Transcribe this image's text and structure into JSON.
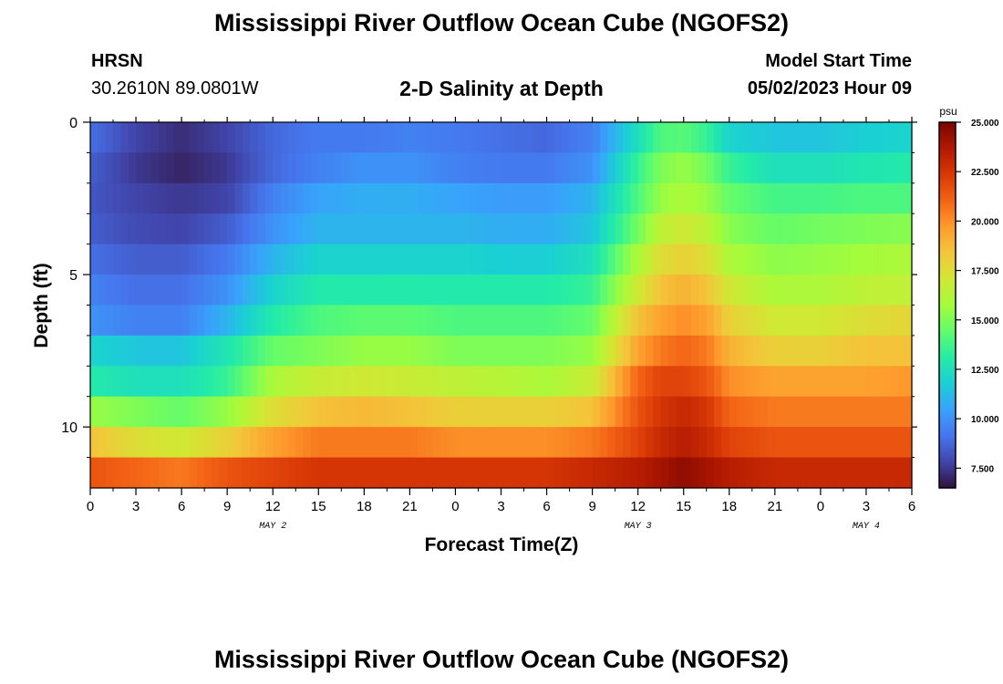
{
  "header": {
    "title": "Mississippi River Outflow Ocean Cube (NGOFS2)",
    "station": "HRSN",
    "coords": "30.2610N  89.0801W",
    "subtitle": "2-D Salinity at Depth",
    "model_start_label": "Model Start Time",
    "model_start_value": "05/02/2023 Hour 09"
  },
  "footer": {
    "title": "Mississippi River Outflow Ocean Cube (NGOFS2)"
  },
  "chart_data": {
    "type": "heatmap",
    "title": "2-D Salinity at Depth",
    "xlabel": "Forecast Time(Z)",
    "ylabel": "Depth (ft)",
    "x_tick_labels": [
      "0",
      "3",
      "6",
      "9",
      "12",
      "15",
      "18",
      "21",
      "0",
      "3",
      "6",
      "9",
      "12",
      "15",
      "18",
      "21",
      "0",
      "3",
      "6"
    ],
    "x_range_hours": [
      0,
      54
    ],
    "date_labels": [
      {
        "label": "MAY 2",
        "at_hour": 12
      },
      {
        "label": "MAY 3",
        "at_hour": 36
      },
      {
        "label": "MAY 4",
        "at_hour": 51
      }
    ],
    "y_tick_labels": [
      "0",
      "5",
      "10"
    ],
    "y_range_ft": [
      0,
      12
    ],
    "y_reversed": true,
    "depth_layers_ft": [
      0.5,
      1.5,
      2.5,
      3.5,
      4.5,
      5.5,
      6.5,
      7.5,
      8.5,
      9.5,
      10.5,
      11.5
    ],
    "time_hours": [
      0,
      3,
      6,
      9,
      12,
      15,
      18,
      21,
      24,
      27,
      30,
      33,
      36,
      37.5,
      39,
      40.5,
      42,
      45,
      48,
      51,
      54
    ],
    "salinity_psu": [
      [
        9.0,
        7.8,
        7.2,
        7.8,
        8.8,
        9.3,
        9.3,
        9.5,
        9.3,
        9.0,
        8.8,
        9.5,
        12.5,
        14.0,
        14.2,
        13.5,
        12.0,
        11.5,
        11.5,
        11.8,
        12.0
      ],
      [
        8.5,
        7.5,
        7.0,
        7.5,
        8.8,
        9.5,
        10.0,
        10.0,
        9.5,
        9.3,
        9.3,
        10.0,
        13.5,
        15.0,
        15.5,
        14.8,
        13.5,
        12.5,
        12.5,
        12.8,
        13.0
      ],
      [
        8.3,
        7.8,
        7.5,
        7.8,
        9.5,
        10.5,
        10.8,
        10.8,
        10.5,
        10.3,
        10.3,
        11.0,
        14.0,
        15.5,
        16.0,
        15.5,
        14.5,
        13.8,
        13.8,
        14.0,
        14.0
      ],
      [
        8.5,
        8.0,
        7.8,
        8.5,
        10.0,
        11.0,
        11.0,
        11.0,
        11.0,
        10.8,
        10.8,
        11.5,
        14.8,
        16.5,
        17.0,
        16.5,
        15.2,
        14.5,
        14.8,
        15.0,
        15.2
      ],
      [
        9.0,
        8.5,
        8.5,
        9.3,
        11.0,
        12.0,
        12.0,
        12.0,
        12.0,
        11.8,
        11.8,
        12.5,
        16.0,
        17.5,
        18.0,
        17.5,
        16.0,
        15.3,
        15.5,
        15.8,
        16.0
      ],
      [
        9.5,
        9.0,
        9.0,
        10.0,
        12.0,
        13.0,
        13.0,
        13.0,
        13.0,
        13.0,
        13.0,
        13.5,
        17.0,
        18.5,
        19.0,
        18.5,
        17.0,
        16.0,
        16.0,
        16.5,
        16.5
      ],
      [
        10.0,
        9.5,
        9.5,
        11.0,
        13.0,
        14.0,
        14.3,
        14.3,
        14.0,
        14.0,
        14.0,
        14.5,
        18.5,
        19.5,
        20.0,
        19.5,
        18.0,
        17.0,
        17.0,
        17.5,
        17.8
      ],
      [
        12.0,
        11.5,
        11.5,
        12.8,
        14.5,
        15.0,
        15.5,
        15.5,
        15.0,
        15.0,
        15.0,
        15.5,
        19.5,
        20.5,
        21.0,
        20.5,
        19.0,
        18.0,
        18.0,
        18.5,
        18.5
      ],
      [
        13.0,
        12.5,
        12.5,
        13.5,
        16.0,
        16.8,
        17.0,
        16.8,
        16.5,
        16.3,
        16.0,
        16.8,
        21.0,
        22.0,
        22.0,
        21.5,
        20.0,
        19.5,
        19.5,
        19.5,
        19.8
      ],
      [
        15.5,
        15.0,
        14.5,
        15.5,
        17.5,
        18.5,
        18.8,
        18.5,
        18.0,
        18.0,
        18.0,
        18.5,
        21.5,
        22.5,
        23.0,
        22.5,
        21.0,
        20.5,
        20.5,
        20.5,
        20.5
      ],
      [
        18.5,
        17.5,
        17.0,
        18.0,
        19.5,
        20.5,
        20.5,
        20.5,
        20.0,
        20.0,
        20.0,
        20.5,
        22.0,
        23.0,
        23.5,
        23.0,
        22.0,
        21.5,
        21.5,
        21.5,
        21.5
      ],
      [
        21.5,
        21.0,
        20.5,
        21.5,
        22.0,
        22.5,
        22.5,
        22.5,
        22.5,
        22.5,
        22.5,
        23.0,
        23.5,
        24.0,
        24.5,
        24.0,
        23.5,
        23.0,
        23.0,
        23.0,
        23.0
      ]
    ],
    "colorbar": {
      "unit": "psu",
      "range": [
        6.5,
        25.0
      ],
      "tick_values": [
        7.5,
        10.0,
        12.5,
        15.0,
        17.5,
        20.0,
        22.5,
        25.0
      ],
      "tick_labels": [
        "7.500",
        "10.000",
        "12.500",
        "15.000",
        "17.500",
        "20.000",
        "22.500",
        "25.000"
      ],
      "palette": [
        "#30123b",
        "#4145ab",
        "#4675ed",
        "#39a2fc",
        "#1bcfd4",
        "#24eca6",
        "#61fc6c",
        "#a4fc3b",
        "#d1e834",
        "#f3c63a",
        "#fe9b2d",
        "#f36315",
        "#d93806",
        "#b11901",
        "#7a0402"
      ]
    }
  }
}
